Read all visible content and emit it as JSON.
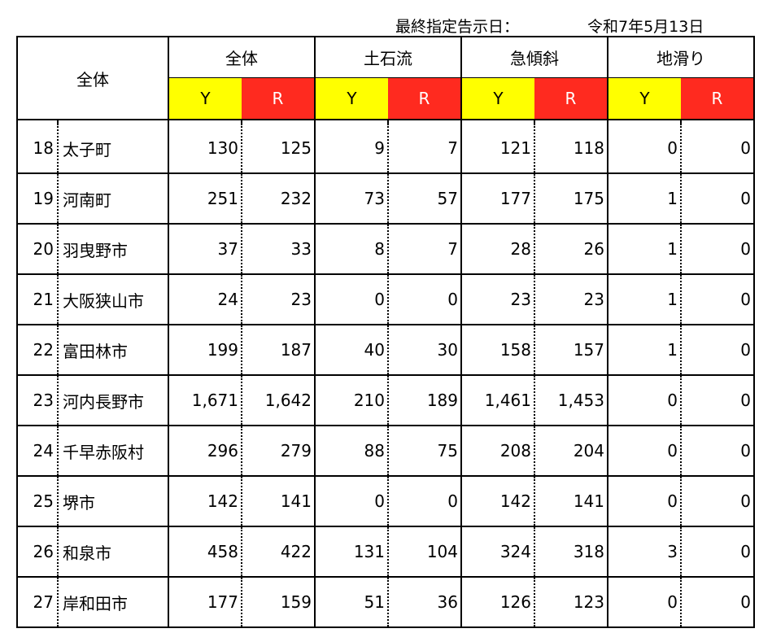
{
  "header": {
    "designation_label": "最終指定告示日：",
    "designation_date": "令和7年5月13日"
  },
  "table": {
    "corner_label": "全体",
    "groups": [
      {
        "label": "全体",
        "y": "Y",
        "r": "R"
      },
      {
        "label": "土石流",
        "y": "Y",
        "r": "R"
      },
      {
        "label": "急傾斜",
        "y": "Y",
        "r": "R"
      },
      {
        "label": "地滑り",
        "y": "Y",
        "r": "R"
      }
    ],
    "rows": [
      {
        "no": "18",
        "name": "太子町",
        "v": [
          "130",
          "125",
          "9",
          "7",
          "121",
          "118",
          "0",
          "0"
        ]
      },
      {
        "no": "19",
        "name": "河南町",
        "v": [
          "251",
          "232",
          "73",
          "57",
          "177",
          "175",
          "1",
          "0"
        ]
      },
      {
        "no": "20",
        "name": "羽曳野市",
        "v": [
          "37",
          "33",
          "8",
          "7",
          "28",
          "26",
          "1",
          "0"
        ]
      },
      {
        "no": "21",
        "name": "大阪狭山市",
        "v": [
          "24",
          "23",
          "0",
          "0",
          "23",
          "23",
          "1",
          "0"
        ]
      },
      {
        "no": "22",
        "name": "富田林市",
        "v": [
          "199",
          "187",
          "40",
          "30",
          "158",
          "157",
          "1",
          "0"
        ]
      },
      {
        "no": "23",
        "name": "河内長野市",
        "v": [
          "1,671",
          "1,642",
          "210",
          "189",
          "1,461",
          "1,453",
          "0",
          "0"
        ]
      },
      {
        "no": "24",
        "name": "千早赤阪村",
        "v": [
          "296",
          "279",
          "88",
          "75",
          "208",
          "204",
          "0",
          "0"
        ]
      },
      {
        "no": "25",
        "name": "堺市",
        "v": [
          "142",
          "141",
          "0",
          "0",
          "142",
          "141",
          "0",
          "0"
        ]
      },
      {
        "no": "26",
        "name": "和泉市",
        "v": [
          "458",
          "422",
          "131",
          "104",
          "324",
          "318",
          "3",
          "0"
        ]
      },
      {
        "no": "27",
        "name": "岸和田市",
        "v": [
          "177",
          "159",
          "51",
          "36",
          "126",
          "123",
          "0",
          "0"
        ]
      }
    ]
  },
  "colors": {
    "y_header": "#ffff00",
    "r_header": "#ff2a1f"
  }
}
